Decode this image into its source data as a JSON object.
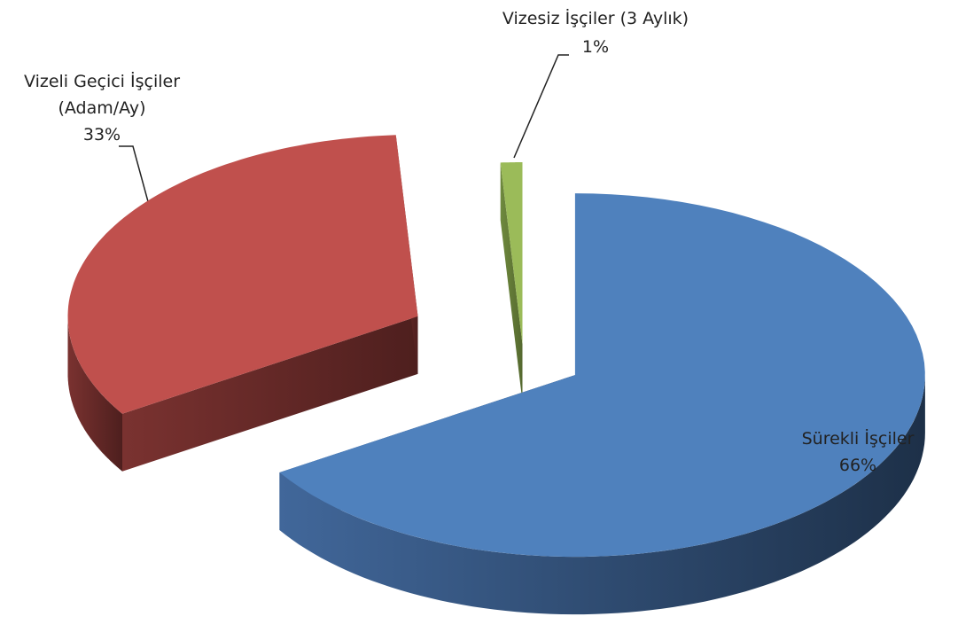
{
  "chart_data": {
    "type": "pie3d",
    "categories": [
      "Sürekli İşçiler",
      "Vizeli Geçici İşçiler (Adam/Ay)",
      "Vizesiz İşçiler (3 Aylık)"
    ],
    "values": [
      66,
      33,
      1
    ],
    "value_labels": [
      "66%",
      "33%",
      "1%"
    ],
    "colors": [
      "#4f81bd",
      "#c0504d",
      "#9bbb59"
    ]
  }
}
